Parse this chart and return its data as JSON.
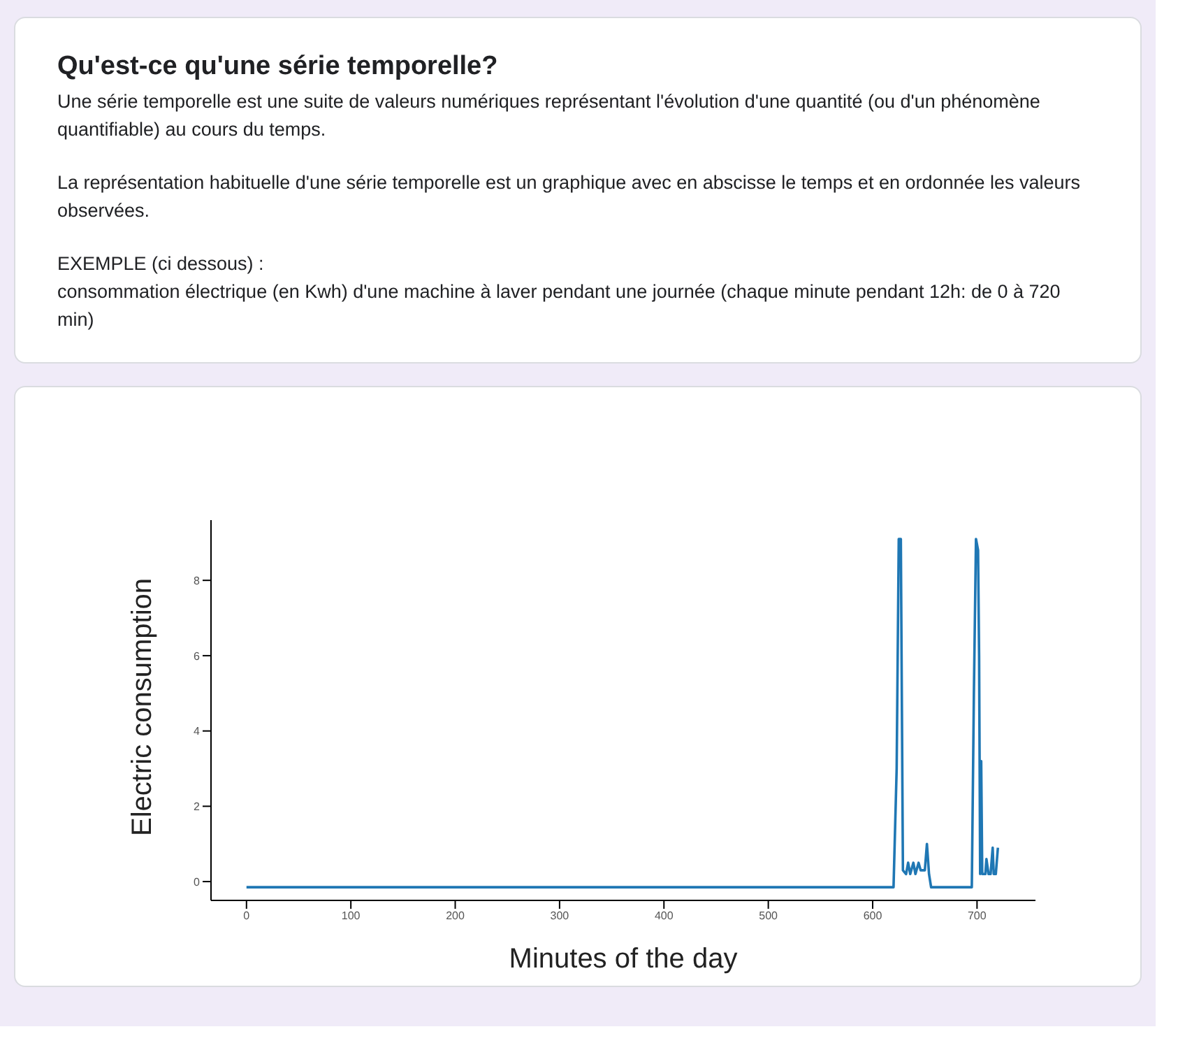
{
  "chart_data": {
    "type": "line",
    "title": "Qu'est-ce qu'une série temporelle?",
    "annotations": [
      "Une série temporelle est une suite de valeurs numériques représentant l'évolution d'une quantité (ou d'un phénomène quantifiable) au cours du temps.",
      "La représentation habituelle d'une série temporelle est un graphique avec en abscisse le temps et en ordonnée les valeurs observées.",
      "EXEMPLE (ci dessous) :",
      "consommation électrique (en Kwh) d'une machine à laver pendant une journée (chaque minute pendant 12h: de 0 à 720 min)"
    ],
    "xlabel": "Minutes of the day",
    "ylabel": "Electric consumption",
    "x": [
      0,
      620,
      623,
      625,
      627,
      629,
      632,
      634,
      636,
      639,
      641,
      644,
      646,
      650,
      652,
      654,
      656,
      695,
      697,
      699,
      701,
      702,
      703,
      704,
      705,
      708,
      709,
      711,
      713,
      715,
      716,
      718,
      720
    ],
    "series": [
      {
        "color": "#1f77b4",
        "values": [
          -0.15,
          -0.15,
          3,
          9.1,
          9.1,
          0.3,
          0.2,
          0.5,
          0.2,
          0.5,
          0.2,
          0.5,
          0.3,
          0.3,
          1.0,
          0.2,
          -0.15,
          -0.15,
          5,
          9.1,
          8.8,
          6,
          0.2,
          3.2,
          0.2,
          0.2,
          0.6,
          0.2,
          0.2,
          0.9,
          0.2,
          0.2,
          0.9
        ]
      }
    ],
    "xlim": [
      -34,
      756
    ],
    "ylim": [
      -0.5,
      9.6
    ],
    "xticks": [
      0,
      100,
      200,
      300,
      400,
      500,
      600,
      700
    ],
    "yticks": [
      0,
      2,
      4,
      6,
      8
    ],
    "grid": false,
    "legend": false,
    "marker": "none",
    "line_style": "solid"
  }
}
